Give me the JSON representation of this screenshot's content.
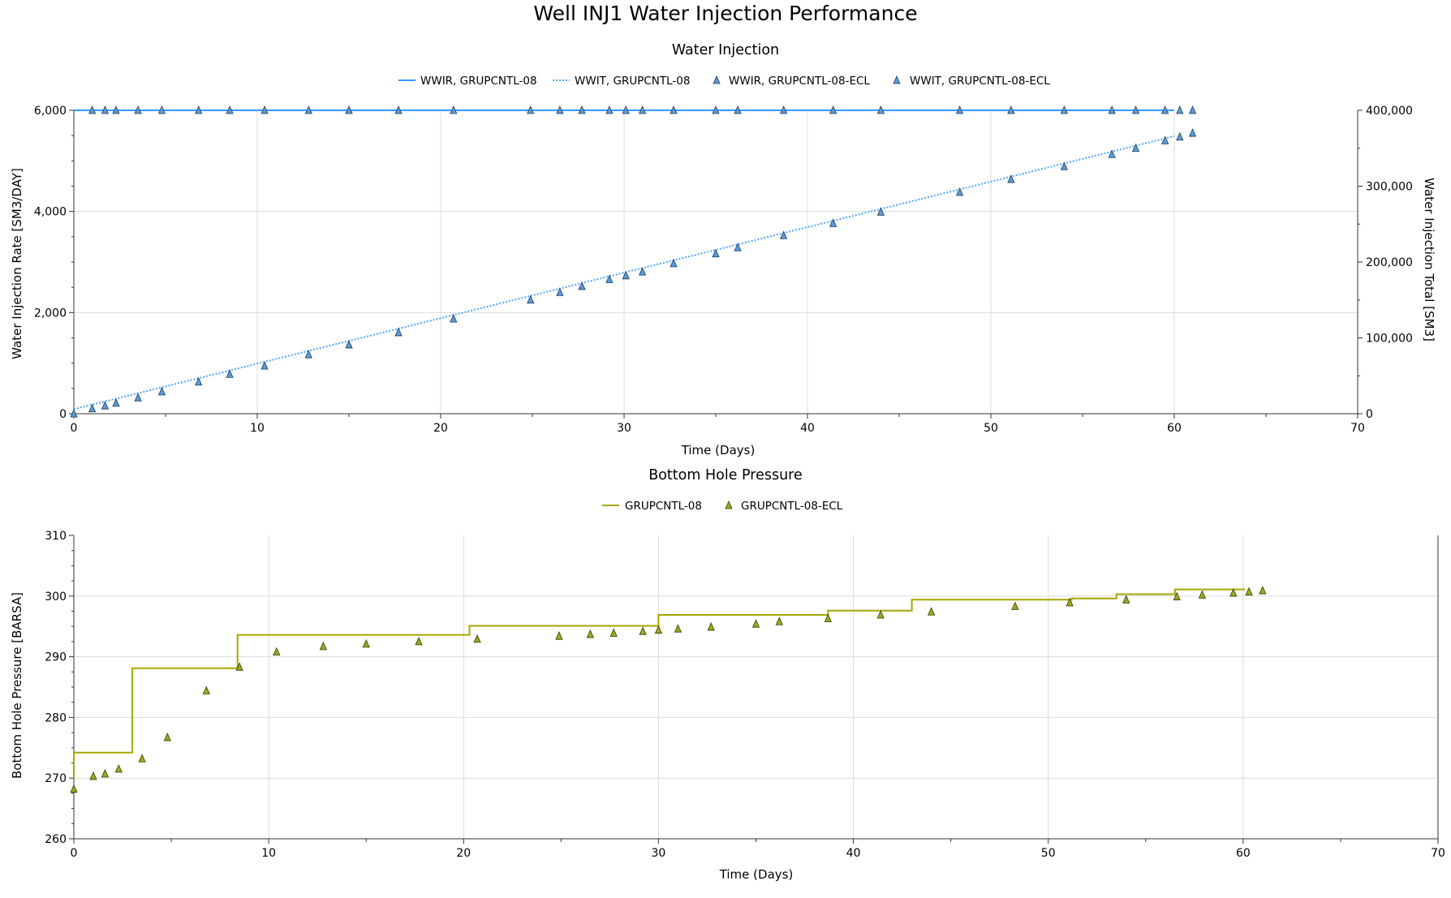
{
  "page": {
    "title": "Well INJ1 Water Injection Performance"
  },
  "colors": {
    "rate": "#3399ff",
    "total": "#4da6ff",
    "marker_blue": "#5b9bd5",
    "pressure": "#a6a600",
    "marker_olive": "#9aaa1f",
    "grid": "#dcdcdc"
  },
  "chart_data": [
    {
      "type": "line",
      "title": "Water Injection",
      "xlabel": "Time (Days)",
      "ylabel": "Water Injection Rate [SM3/DAY]",
      "y2label": "Water Injection Total [SM3]",
      "xlim": [
        0,
        70
      ],
      "ylim": [
        0,
        6000
      ],
      "y2lim": [
        0,
        400000
      ],
      "xticks": [
        0,
        10,
        20,
        30,
        40,
        50,
        60,
        70
      ],
      "yticks": [
        0,
        2000,
        4000,
        6000
      ],
      "y2ticks": [
        0,
        100000,
        200000,
        300000,
        400000
      ],
      "grid": true,
      "legend_position": "top",
      "series": [
        {
          "name": "WWIR, GRUPCNTL-08",
          "axis": "left",
          "style": "solid",
          "color": "#3399ff",
          "x": [
            0,
            60
          ],
          "y": [
            6000,
            6000
          ]
        },
        {
          "name": "WWIT, GRUPCNTL-08",
          "axis": "right",
          "style": "dotted",
          "color": "#4da6ff",
          "x": [
            0,
            60
          ],
          "y": [
            6000,
            366000
          ]
        },
        {
          "name": "WWIR, GRUPCNTL-08-ECL",
          "axis": "left",
          "style": "markers",
          "color": "#5b9bd5",
          "x": [
            1,
            1.7,
            2.3,
            3.5,
            4.8,
            6.8,
            8.5,
            10.4,
            12.8,
            15,
            17.7,
            20.7,
            24.9,
            26.5,
            27.7,
            29.2,
            30.1,
            31,
            32.7,
            35,
            36.2,
            38.7,
            41.4,
            44,
            48.3,
            51.1,
            54,
            56.6,
            57.9,
            59.5,
            60.3,
            61
          ],
          "y": [
            6000,
            6000,
            6000,
            6000,
            6000,
            6000,
            6000,
            6000,
            6000,
            6000,
            6000,
            6000,
            6000,
            6000,
            6000,
            6000,
            6000,
            6000,
            6000,
            6000,
            6000,
            6000,
            6000,
            6000,
            6000,
            6000,
            6000,
            6000,
            6000,
            6000,
            6000,
            6000
          ]
        },
        {
          "name": "WWIT, GRUPCNTL-08-ECL",
          "axis": "right",
          "style": "markers",
          "color": "#5b9bd5",
          "x": [
            0,
            1,
            1.7,
            2.3,
            3.5,
            4.8,
            6.8,
            8.5,
            10.4,
            12.8,
            15,
            17.7,
            20.7,
            24.9,
            26.5,
            27.7,
            29.2,
            30.1,
            31,
            32.7,
            35,
            36.2,
            38.7,
            41.4,
            44,
            48.3,
            51.1,
            54,
            56.6,
            57.9,
            59.5,
            60.3,
            61
          ],
          "y": [
            0,
            6700,
            10500,
            14000,
            21000,
            29000,
            42000,
            52000,
            63000,
            78000,
            91000,
            107000,
            125000,
            150000,
            160000,
            168000,
            177000,
            182000,
            187000,
            198000,
            211000,
            219000,
            235000,
            251000,
            266000,
            292000,
            309000,
            326000,
            342000,
            350000,
            360000,
            365000,
            370000
          ]
        }
      ]
    },
    {
      "type": "line",
      "title": "Bottom Hole Pressure",
      "xlabel": "Time (Days)",
      "ylabel": "Bottom Hole Pressure [BARSA]",
      "xlim": [
        0,
        70
      ],
      "ylim": [
        260,
        310
      ],
      "xticks": [
        0,
        10,
        20,
        30,
        40,
        50,
        60,
        70
      ],
      "yticks": [
        260,
        270,
        280,
        290,
        300,
        310
      ],
      "grid": true,
      "legend_position": "top",
      "series": [
        {
          "name": "GRUPCNTL-08",
          "style": "step",
          "color": "#a6a600",
          "x": [
            0,
            0,
            3,
            3,
            8.4,
            8.4,
            20.3,
            20.3,
            30,
            30,
            38.7,
            38.7,
            43,
            43,
            51.2,
            51.2,
            53.5,
            53.5,
            56.5,
            56.5,
            60.1
          ],
          "y": [
            270,
            274.2,
            274.2,
            288.1,
            288.1,
            293.6,
            293.6,
            295.1,
            295.1,
            296.9,
            296.9,
            297.6,
            297.6,
            299.4,
            299.4,
            299.6,
            299.6,
            300.3,
            300.3,
            301.1,
            301.1
          ]
        },
        {
          "name": "GRUPCNTL-08-ECL",
          "style": "markers",
          "color": "#9aaa1f",
          "x": [
            0,
            1,
            1.6,
            2.3,
            3.5,
            4.8,
            6.8,
            8.5,
            10.4,
            12.8,
            15,
            17.7,
            20.7,
            24.9,
            26.5,
            27.7,
            29.2,
            30,
            31,
            32.7,
            35,
            36.2,
            38.7,
            41.4,
            44,
            48.3,
            51.1,
            54,
            56.6,
            57.9,
            59.5,
            60.3,
            61
          ],
          "y": [
            268.2,
            270.3,
            270.7,
            271.5,
            273.2,
            276.7,
            284.4,
            288.3,
            290.8,
            291.7,
            292.1,
            292.5,
            292.9,
            293.4,
            293.7,
            293.9,
            294.2,
            294.4,
            294.6,
            294.9,
            295.4,
            295.8,
            296.3,
            296.9,
            297.4,
            298.3,
            298.9,
            299.4,
            299.9,
            300.2,
            300.5,
            300.7,
            300.9
          ]
        }
      ]
    }
  ]
}
